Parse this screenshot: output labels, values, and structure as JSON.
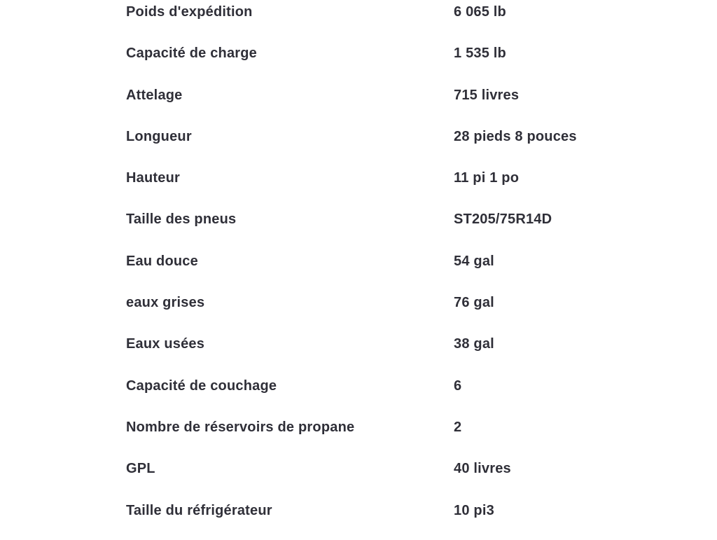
{
  "colors": {
    "background": "#ffffff",
    "text": "#2f2f38"
  },
  "spec_table": {
    "rows": [
      {
        "label": "Poids d'expédition",
        "value": "6 065 lb"
      },
      {
        "label": "Capacité de charge",
        "value": "1 535 lb"
      },
      {
        "label": "Attelage",
        "value": "715 livres"
      },
      {
        "label": "Longueur",
        "value": "28 pieds 8 pouces"
      },
      {
        "label": "Hauteur",
        "value": "11 pi 1 po"
      },
      {
        "label": "Taille des pneus",
        "value": "ST205/75R14D"
      },
      {
        "label": "Eau douce",
        "value": "54 gal"
      },
      {
        "label": "eaux grises",
        "value": "76 gal"
      },
      {
        "label": "Eaux usées",
        "value": "38 gal"
      },
      {
        "label": "Capacité de couchage",
        "value": "6"
      },
      {
        "label": "Nombre de réservoirs de propane",
        "value": "2"
      },
      {
        "label": "GPL",
        "value": "40 livres"
      },
      {
        "label": "Taille du réfrigérateur",
        "value": "10 pi3"
      }
    ]
  }
}
